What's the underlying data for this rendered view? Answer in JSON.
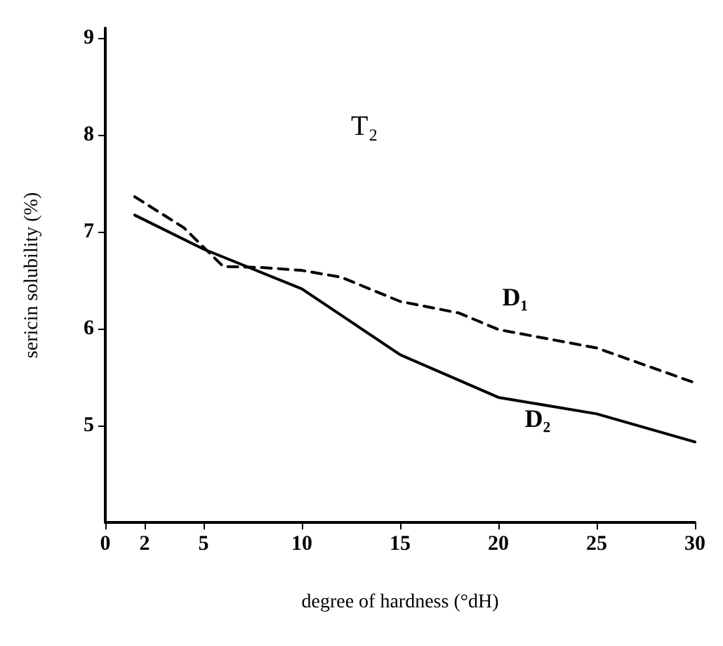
{
  "chart_data": {
    "type": "line",
    "xlabel": "degree of hardness (°dH)",
    "ylabel": "sericin solubility (%)",
    "annotations": [
      "T₂"
    ],
    "xlim": [
      0,
      30
    ],
    "xticks": [
      0,
      2,
      5,
      10,
      15,
      20,
      25,
      30
    ],
    "ylim": [
      4,
      9.1
    ],
    "yticks": [
      5,
      6,
      7,
      8,
      9
    ],
    "grid": false,
    "legend": false,
    "marker": "none",
    "series": [
      {
        "name": "D₁",
        "color": "#000000",
        "line_style": "dashed",
        "x": [
          1.5,
          4,
          6,
          8,
          10,
          12,
          15,
          18,
          20,
          25,
          30
        ],
        "values": [
          7.36,
          7.04,
          6.64,
          6.63,
          6.6,
          6.53,
          6.28,
          6.16,
          5.99,
          5.8,
          5.44
        ]
      },
      {
        "name": "D₂",
        "color": "#000000",
        "line_style": "solid",
        "x": [
          1.5,
          5,
          10,
          15,
          20,
          25,
          30
        ],
        "values": [
          7.17,
          6.82,
          6.41,
          5.73,
          5.29,
          5.12,
          4.83
        ]
      }
    ]
  }
}
